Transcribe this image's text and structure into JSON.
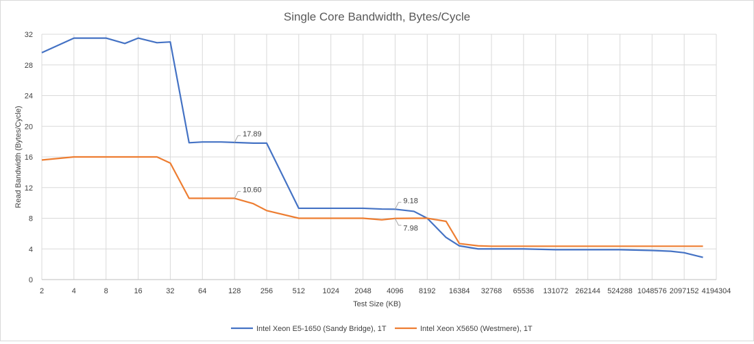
{
  "chart_data": {
    "type": "line",
    "title": "Single Core Bandwidth, Bytes/Cycle",
    "xlabel": "Test Size (KB)",
    "ylabel": "Read Bandwidth (Bytes/Cycle)",
    "ylim": [
      0,
      32
    ],
    "yticks": [
      0,
      4,
      8,
      12,
      16,
      20,
      24,
      28,
      32
    ],
    "x_scale": "log2",
    "xticks": [
      "2",
      "4",
      "8",
      "16",
      "32",
      "64",
      "128",
      "256",
      "512",
      "1024",
      "2048",
      "4096",
      "8192",
      "16384",
      "32768",
      "65536",
      "131072",
      "262144",
      "524288",
      "1048576",
      "2097152",
      "4194304"
    ],
    "grid": "vertical-and-horizontal",
    "legend": "bottom",
    "series": [
      {
        "name": "Intel Xeon E5-1650 (Sandy Bridge), 1T",
        "color": "#4472c4",
        "x": [
          2,
          4,
          8,
          12,
          16,
          24,
          32,
          48,
          64,
          96,
          128,
          192,
          256,
          512,
          1024,
          2048,
          3072,
          4096,
          6144,
          8192,
          12288,
          16384,
          24576,
          32768,
          65536,
          131072,
          262144,
          524288,
          1048576,
          1572864,
          2097152,
          3145728
        ],
        "y": [
          29.6,
          31.5,
          31.5,
          30.8,
          31.5,
          30.9,
          31.0,
          17.85,
          17.95,
          17.95,
          17.89,
          17.8,
          17.8,
          9.3,
          9.3,
          9.3,
          9.2,
          9.18,
          8.9,
          8.0,
          5.5,
          4.4,
          4.0,
          4.0,
          4.0,
          3.9,
          3.9,
          3.9,
          3.8,
          3.7,
          3.5,
          2.9
        ]
      },
      {
        "name": "Intel Xeon X5650 (Westmere), 1T",
        "color": "#ed7d31",
        "x": [
          2,
          4,
          8,
          12,
          16,
          24,
          32,
          48,
          64,
          96,
          128,
          192,
          256,
          512,
          1024,
          2048,
          3072,
          4096,
          6144,
          8192,
          12288,
          16384,
          24576,
          32768,
          65536,
          131072,
          262144,
          524288,
          1048576,
          1572864,
          2097152,
          3145728
        ],
        "y": [
          15.6,
          16.0,
          16.0,
          16.0,
          16.0,
          16.0,
          15.2,
          10.6,
          10.6,
          10.6,
          10.6,
          9.9,
          9.0,
          8.0,
          8.0,
          8.0,
          7.8,
          7.98,
          8.0,
          8.0,
          7.6,
          4.7,
          4.4,
          4.35,
          4.35,
          4.35,
          4.35,
          4.35,
          4.35,
          4.35,
          4.35,
          4.35
        ]
      }
    ],
    "annotations": [
      {
        "series": 0,
        "x": 128,
        "label": "17.89"
      },
      {
        "series": 1,
        "x": 128,
        "label": "10.60"
      },
      {
        "series": 0,
        "x": 4096,
        "label": "9.18"
      },
      {
        "series": 1,
        "x": 4096,
        "label": "7.98"
      }
    ]
  }
}
